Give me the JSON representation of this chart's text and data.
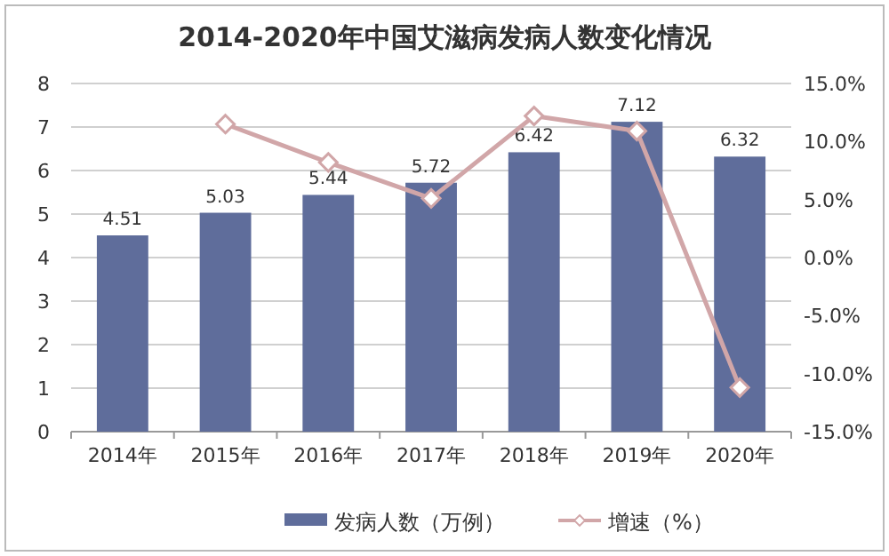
{
  "chart_data": {
    "type": "bar",
    "title": "2014-2020年中国艾滋病发病人数变化情况",
    "categories": [
      "2014年",
      "2015年",
      "2016年",
      "2017年",
      "2018年",
      "2019年",
      "2020年"
    ],
    "series": [
      {
        "name": "发病人数（万例）",
        "color": "#5f6d9b",
        "values": [
          4.51,
          5.03,
          5.44,
          5.72,
          6.42,
          7.12,
          6.32
        ],
        "value_labels": [
          "4.51",
          "5.03",
          "5.44",
          "5.72",
          "6.42",
          "7.12",
          "6.32"
        ]
      },
      {
        "name": "增速（%）",
        "type": "line",
        "axis": "y2",
        "color": "#d1a6a8",
        "marker": "diamond",
        "values": [
          null,
          11.5,
          8.2,
          5.1,
          12.2,
          10.9,
          -11.2
        ]
      }
    ],
    "ylim": [
      0,
      8
    ],
    "yticks": [
      0,
      1,
      2,
      3,
      4,
      5,
      6,
      7,
      8
    ],
    "y2lim": [
      -15,
      15
    ],
    "y2ticks": [
      {
        "value": -15,
        "label": "-15.0%"
      },
      {
        "value": -10,
        "label": "-10.0%"
      },
      {
        "value": -5,
        "label": "-5.0%"
      },
      {
        "value": 0,
        "label": "0.0%"
      },
      {
        "value": 5,
        "label": "5.0%"
      },
      {
        "value": 10,
        "label": "10.0%"
      },
      {
        "value": 15,
        "label": "15.0%"
      }
    ],
    "grid": "y",
    "legend": "bottom"
  }
}
